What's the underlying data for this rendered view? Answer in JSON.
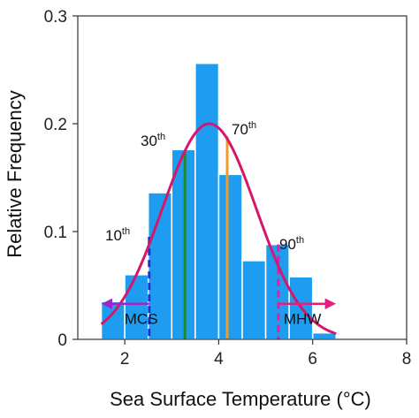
{
  "chart_data": {
    "type": "bar",
    "title": "",
    "xlabel": "Sea Surface Temperature (°C)",
    "ylabel": "Relative Frequency",
    "xlim": [
      1,
      8
    ],
    "ylim": [
      0,
      0.3
    ],
    "xticks": [
      2,
      4,
      6,
      8
    ],
    "yticks": [
      0,
      0.1,
      0.2,
      0.3
    ],
    "ytick_labels": [
      "0",
      "0.1",
      "0.2",
      "0.3"
    ],
    "grid": false,
    "bin_width": 0.5,
    "histogram": [
      {
        "x": 1.5,
        "value": 0.035
      },
      {
        "x": 2.0,
        "value": 0.06
      },
      {
        "x": 2.5,
        "value": 0.136
      },
      {
        "x": 3.0,
        "value": 0.176
      },
      {
        "x": 3.5,
        "value": 0.256
      },
      {
        "x": 4.0,
        "value": 0.153
      },
      {
        "x": 4.5,
        "value": 0.073
      },
      {
        "x": 5.0,
        "value": 0.088
      },
      {
        "x": 5.5,
        "value": 0.058
      },
      {
        "x": 6.0,
        "value": 0.006
      }
    ],
    "fit_curve": {
      "mean": 3.8,
      "sd": 1.0,
      "peak": 0.2,
      "x_range": [
        1.5,
        6.5
      ]
    },
    "percentiles": [
      {
        "label": "10",
        "sup": "th",
        "x": 2.52,
        "y": 0.095,
        "style": "dashed"
      },
      {
        "label": "30",
        "sup": "th",
        "x": 3.28,
        "y": 0.175,
        "style": "solid"
      },
      {
        "label": "70",
        "sup": "th",
        "x": 4.18,
        "y": 0.188,
        "style": "solid"
      },
      {
        "label": "90",
        "sup": "th",
        "x": 5.27,
        "y": 0.088,
        "style": "dashed"
      }
    ],
    "regions": [
      {
        "label": "MCS",
        "x_from": 2.52,
        "x_to": 1.55,
        "y": 0.033
      },
      {
        "label": "MHW",
        "x_from": 5.27,
        "x_to": 6.45,
        "y": 0.033
      }
    ],
    "colors": {
      "bars": "#1e9df0",
      "curve": "#d4176b",
      "p10": "#2a2ad0",
      "p30": "#1e8a2a",
      "p70": "#f39a2b",
      "p90": "#e020a0",
      "mcs_arrow": "#9a28c8",
      "mhw_arrow": "#e0207a"
    }
  }
}
